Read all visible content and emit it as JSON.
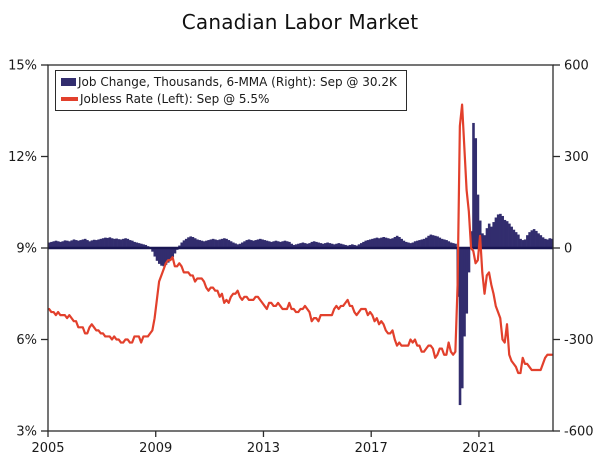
{
  "title": "Canadian Labor Market",
  "chart_data": {
    "type": "bar+line combo, dual axis",
    "title": "Canadian Labor Market",
    "x_unit": "monthly",
    "x_start": "2005-01",
    "x_end": "2023-09",
    "x_ticks": [
      2005,
      2009,
      2013,
      2017,
      2021
    ],
    "grid": false,
    "legend_position": "top-left inside plot",
    "left_axis": {
      "min": 3,
      "max": 15,
      "tick_values": [
        15,
        12,
        9,
        6,
        3
      ],
      "tick_labels": [
        "15%",
        "12%",
        "9%",
        "6%",
        "3%"
      ]
    },
    "right_axis": {
      "min": -600,
      "max": 600,
      "tick_values": [
        600,
        300,
        0,
        -300,
        -600
      ],
      "tick_labels": [
        "600",
        "300",
        "0",
        "-300",
        "-600"
      ]
    },
    "zero_line_axis": "right",
    "colors": {
      "bars": "#322d6e",
      "line": "#e2402c",
      "zero_line": "#191653",
      "frame": "#2b2b2b",
      "text": "#1a1a1a"
    },
    "series": [
      {
        "name": "Job Change, Thousands, 6-MMA (Right): Sep @ 30.2K",
        "type": "bar",
        "axis": "right",
        "color": "#322d6e",
        "values": [
          18,
          20,
          22,
          24,
          22,
          20,
          22,
          25,
          24,
          22,
          25,
          28,
          26,
          24,
          26,
          28,
          30,
          26,
          22,
          25,
          27,
          26,
          28,
          30,
          32,
          34,
          33,
          35,
          32,
          30,
          31,
          29,
          28,
          30,
          32,
          30,
          26,
          24,
          20,
          18,
          16,
          14,
          12,
          10,
          6,
          0,
          -12,
          -28,
          -42,
          -52,
          -58,
          -60,
          -55,
          -48,
          -40,
          -30,
          -18,
          -6,
          8,
          18,
          25,
          30,
          35,
          38,
          36,
          32,
          28,
          26,
          24,
          22,
          24,
          26,
          28,
          30,
          28,
          26,
          28,
          30,
          32,
          30,
          26,
          22,
          18,
          15,
          12,
          14,
          18,
          22,
          26,
          28,
          26,
          24,
          26,
          28,
          30,
          28,
          26,
          24,
          22,
          20,
          22,
          24,
          22,
          20,
          22,
          24,
          22,
          20,
          14,
          10,
          12,
          14,
          16,
          18,
          16,
          14,
          16,
          20,
          22,
          20,
          18,
          16,
          14,
          16,
          18,
          16,
          14,
          12,
          14,
          16,
          14,
          12,
          10,
          8,
          10,
          12,
          10,
          8,
          12,
          16,
          20,
          24,
          26,
          28,
          30,
          32,
          34,
          32,
          34,
          36,
          34,
          32,
          30,
          32,
          36,
          40,
          36,
          30,
          24,
          20,
          18,
          16,
          18,
          22,
          24,
          26,
          28,
          30,
          34,
          40,
          44,
          42,
          40,
          38,
          34,
          30,
          28,
          26,
          22,
          18,
          16,
          14,
          -160,
          -515,
          -460,
          -290,
          -215,
          -80,
          55,
          410,
          360,
          175,
          90,
          48,
          42,
          65,
          80,
          70,
          85,
          100,
          110,
          112,
          105,
          92,
          88,
          80,
          70,
          60,
          52,
          44,
          30,
          26,
          28,
          42,
          52,
          58,
          62,
          56,
          48,
          42,
          35,
          30,
          28,
          32,
          30.2
        ]
      },
      {
        "name": "Jobless Rate (Left): Sep @ 5.5%",
        "type": "line",
        "axis": "left",
        "color": "#e2402c",
        "values": [
          7.0,
          6.9,
          6.9,
          6.8,
          6.9,
          6.8,
          6.8,
          6.8,
          6.7,
          6.8,
          6.7,
          6.6,
          6.6,
          6.4,
          6.4,
          6.4,
          6.2,
          6.2,
          6.4,
          6.5,
          6.4,
          6.3,
          6.3,
          6.2,
          6.2,
          6.1,
          6.1,
          6.1,
          6.0,
          6.1,
          6.0,
          6.0,
          5.9,
          5.9,
          6.0,
          6.0,
          5.9,
          5.9,
          6.1,
          6.1,
          6.1,
          5.9,
          6.1,
          6.1,
          6.1,
          6.2,
          6.3,
          6.7,
          7.3,
          7.9,
          8.1,
          8.3,
          8.5,
          8.6,
          8.6,
          8.7,
          8.4,
          8.4,
          8.5,
          8.4,
          8.2,
          8.2,
          8.2,
          8.1,
          8.1,
          7.9,
          8.0,
          8.0,
          8.0,
          7.9,
          7.7,
          7.6,
          7.7,
          7.7,
          7.6,
          7.6,
          7.4,
          7.5,
          7.2,
          7.3,
          7.2,
          7.4,
          7.5,
          7.5,
          7.6,
          7.4,
          7.3,
          7.4,
          7.4,
          7.3,
          7.3,
          7.3,
          7.4,
          7.4,
          7.3,
          7.2,
          7.1,
          7.0,
          7.2,
          7.2,
          7.1,
          7.1,
          7.2,
          7.1,
          7.0,
          7.0,
          7.0,
          7.2,
          7.0,
          7.0,
          6.9,
          6.9,
          7.0,
          7.0,
          7.1,
          7.0,
          6.9,
          6.6,
          6.7,
          6.7,
          6.6,
          6.8,
          6.8,
          6.8,
          6.8,
          6.8,
          6.8,
          7.0,
          7.1,
          7.0,
          7.1,
          7.1,
          7.2,
          7.3,
          7.1,
          7.1,
          6.9,
          6.8,
          6.9,
          7.0,
          7.0,
          7.0,
          6.8,
          6.9,
          6.8,
          6.6,
          6.7,
          6.5,
          6.6,
          6.5,
          6.3,
          6.2,
          6.2,
          6.3,
          6.0,
          5.8,
          5.9,
          5.8,
          5.8,
          5.8,
          5.8,
          6.0,
          5.9,
          6.0,
          5.8,
          5.8,
          5.6,
          5.6,
          5.7,
          5.8,
          5.8,
          5.7,
          5.4,
          5.5,
          5.7,
          5.7,
          5.5,
          5.5,
          5.9,
          5.6,
          5.5,
          5.6,
          7.8,
          13.0,
          13.7,
          12.3,
          10.9,
          10.2,
          9.0,
          8.9,
          8.5,
          8.6,
          9.4,
          8.2,
          7.5,
          8.1,
          8.2,
          7.8,
          7.5,
          7.1,
          6.9,
          6.7,
          6.0,
          5.9,
          6.5,
          5.5,
          5.3,
          5.2,
          5.1,
          4.9,
          4.9,
          5.4,
          5.2,
          5.2,
          5.1,
          5.0,
          5.0,
          5.0,
          5.0,
          5.0,
          5.2,
          5.4,
          5.5,
          5.5,
          5.5
        ]
      }
    ]
  }
}
